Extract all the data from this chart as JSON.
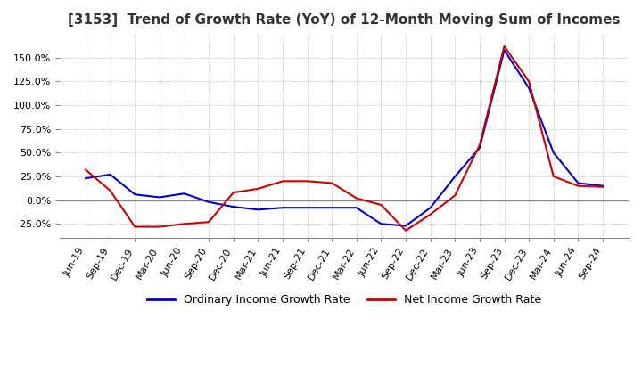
{
  "title": "[3153]  Trend of Growth Rate (YoY) of 12-Month Moving Sum of Incomes",
  "title_fontsize": 11,
  "ylim": [
    -40,
    175
  ],
  "yticks": [
    -25.0,
    0.0,
    25.0,
    50.0,
    75.0,
    100.0,
    125.0,
    150.0
  ],
  "background_color": "#ffffff",
  "grid_color": "#aaaaaa",
  "legend_labels": [
    "Ordinary Income Growth Rate",
    "Net Income Growth Rate"
  ],
  "legend_colors": [
    "#0000cc",
    "#cc0000"
  ],
  "x_labels": [
    "Jun-19",
    "Sep-19",
    "Dec-19",
    "Mar-20",
    "Jun-20",
    "Sep-20",
    "Dec-20",
    "Mar-21",
    "Jun-21",
    "Sep-21",
    "Dec-21",
    "Mar-22",
    "Jun-22",
    "Sep-22",
    "Dec-22",
    "Mar-23",
    "Jun-23",
    "Sep-23",
    "Dec-23",
    "Mar-24",
    "Jun-24",
    "Sep-24"
  ],
  "ordinary_income": [
    23.0,
    27.0,
    6.0,
    3.0,
    7.0,
    -2.0,
    -7.0,
    -10.0,
    -8.0,
    -8.0,
    -8.0,
    -8.0,
    -25.0,
    -27.0,
    -8.0,
    25.0,
    55.0,
    158.0,
    118.0,
    50.0,
    18.0,
    15.0
  ],
  "net_income": [
    32.0,
    10.0,
    -28.0,
    -28.0,
    -25.0,
    -23.0,
    8.0,
    12.0,
    20.0,
    20.0,
    18.0,
    2.0,
    -5.0,
    -32.0,
    -15.0,
    5.0,
    58.0,
    162.0,
    125.0,
    25.0,
    15.0,
    14.0
  ]
}
